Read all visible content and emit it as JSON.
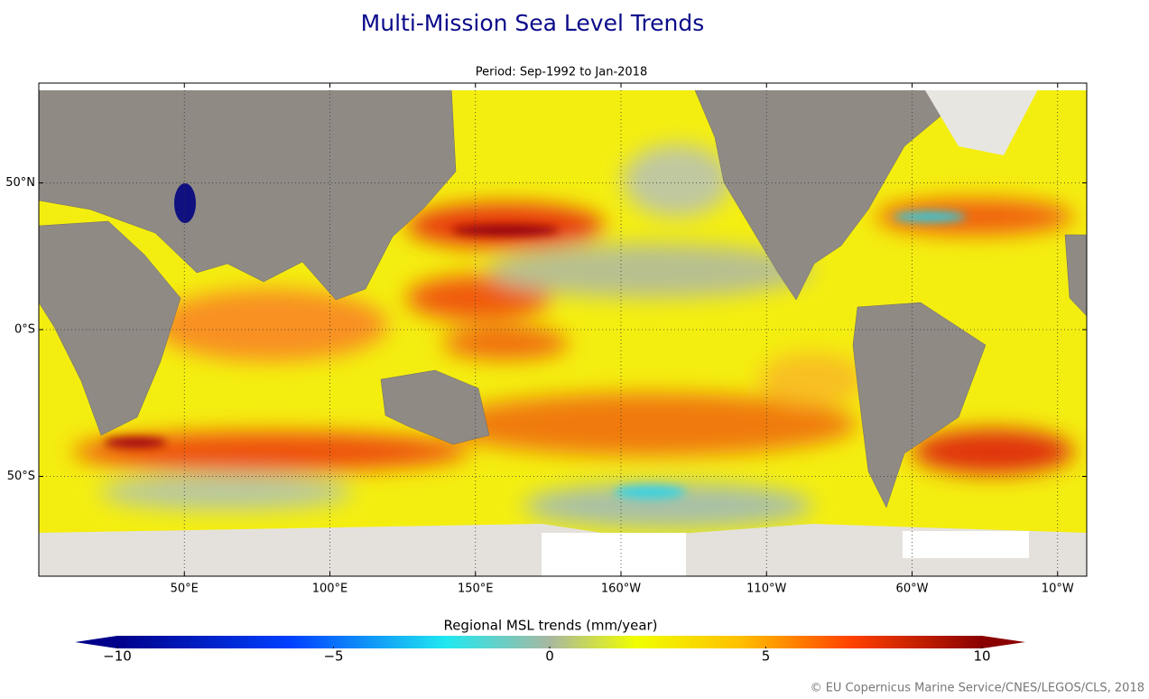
{
  "title": "Multi-Mission Sea Level Trends",
  "map": {
    "subtitle": "Period: Sep-1992 to Jan-2018",
    "xlim": [
      0,
      360
    ],
    "ylim": [
      -84,
      84
    ],
    "xticks": [
      {
        "value": 50,
        "label": "50°E"
      },
      {
        "value": 100,
        "label": "100°E"
      },
      {
        "value": 150,
        "label": "150°E"
      },
      {
        "value": 200,
        "label": "160°W"
      },
      {
        "value": 250,
        "label": "110°W"
      },
      {
        "value": 300,
        "label": "60°W"
      },
      {
        "value": 350,
        "label": "10°W"
      }
    ],
    "yticks": [
      {
        "value": 50,
        "label": "50°N"
      },
      {
        "value": 0,
        "label": "0°S"
      },
      {
        "value": -50,
        "label": "50°S"
      }
    ],
    "grid": true
  },
  "colorbar": {
    "label": "Regional MSL trends (mm/year)",
    "lim": [
      -10,
      10
    ],
    "ticks": [
      {
        "value": -10,
        "label": "−10"
      },
      {
        "value": -5,
        "label": "−5"
      },
      0,
      5,
      10
    ]
  },
  "credit": "© EU Copernicus Marine Service/CNES/LEGOS/CLS, 2018"
}
